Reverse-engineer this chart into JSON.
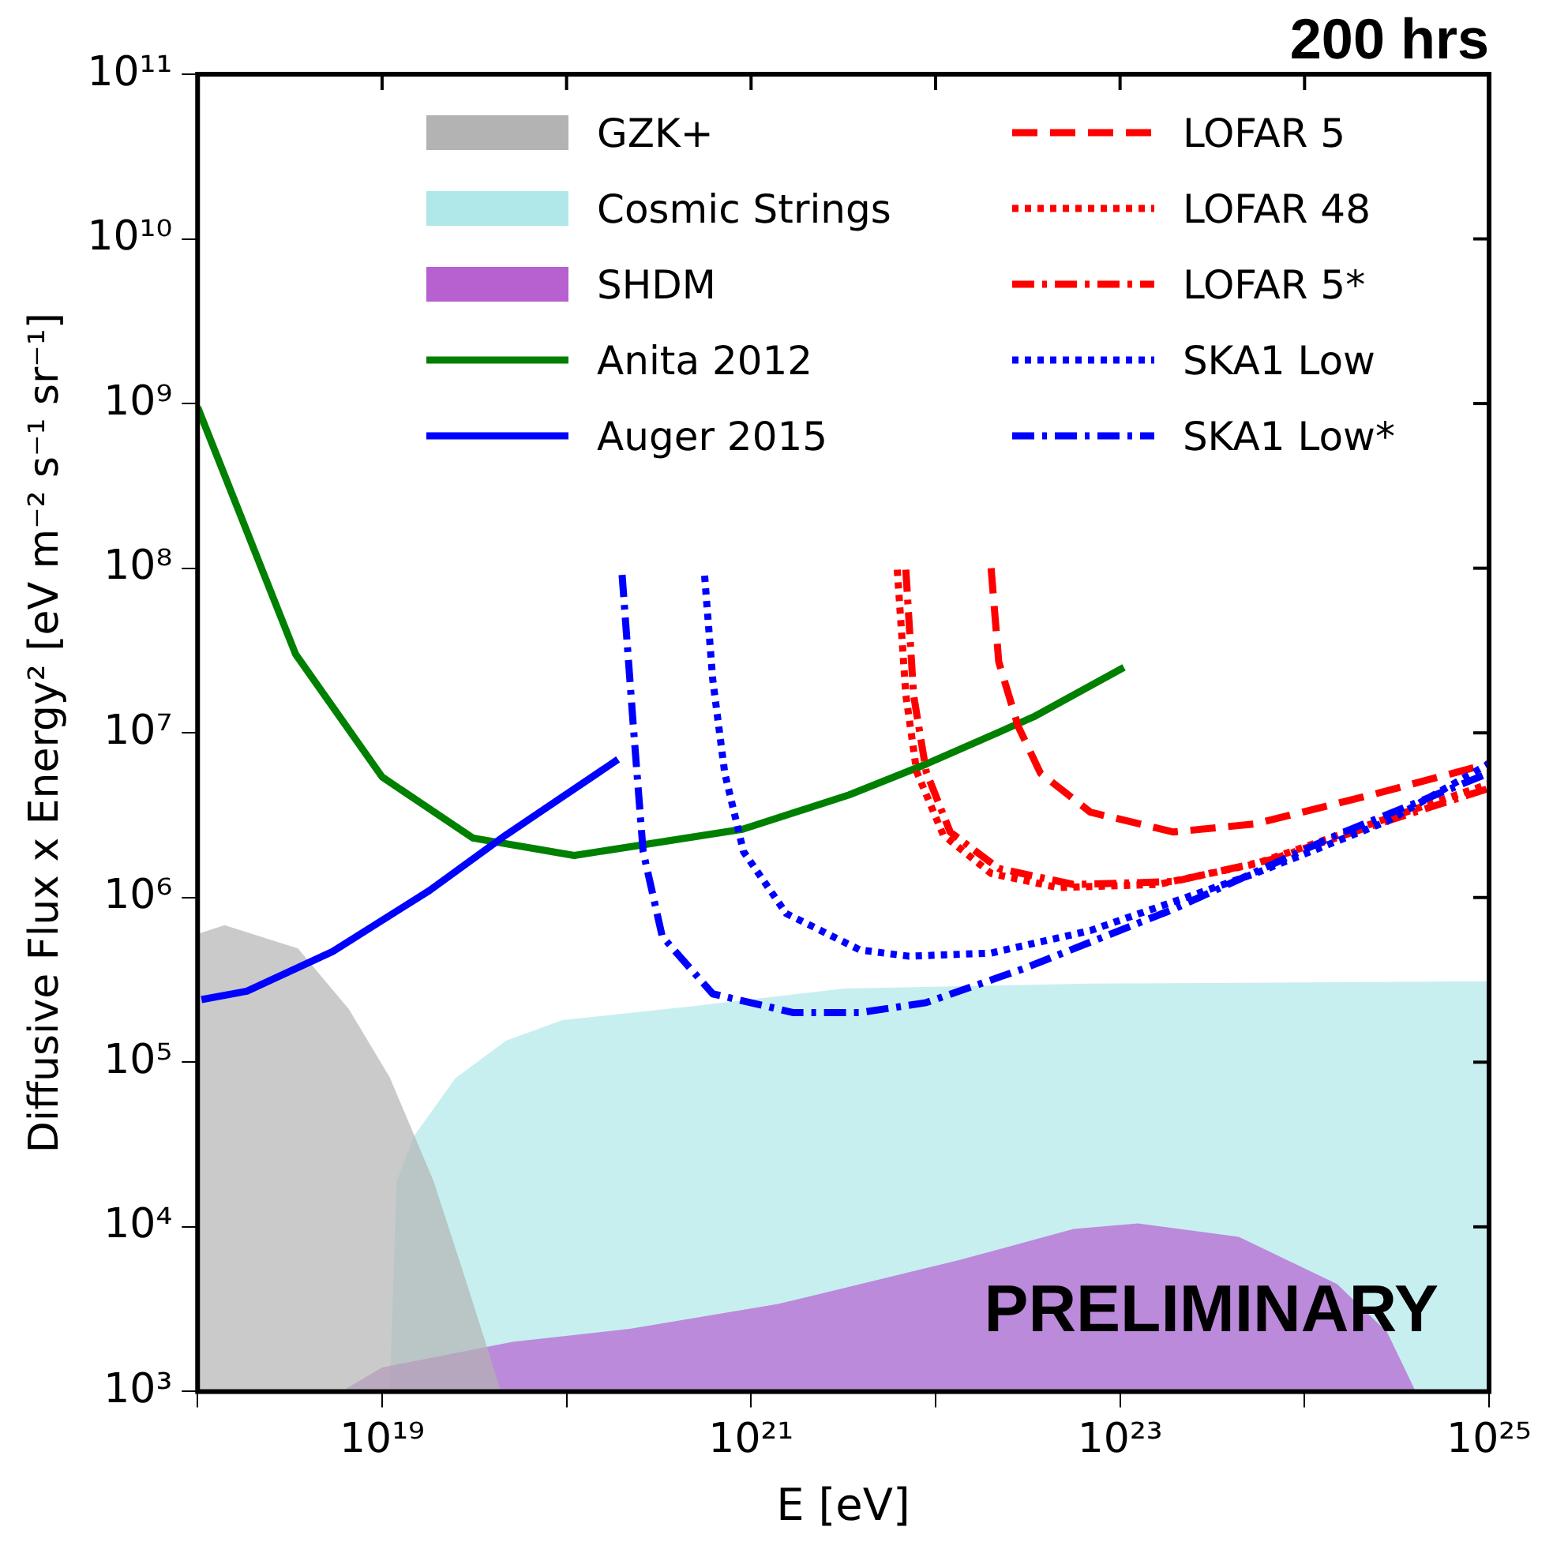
{
  "chart_data": {
    "type": "line",
    "title": "200 hrs",
    "xlabel": "E [eV]",
    "ylabel": "Diffusive Flux x Energy² [eV m⁻² s⁻¹ sr⁻¹]",
    "annotations": [
      "PRELIMINARY"
    ],
    "log": "xy",
    "grid": false,
    "legend": "top",
    "marker": "none",
    "xlim": [
      1e+18,
      1e+25
    ],
    "ylim": [
      1000.0,
      100000000000.0
    ],
    "xticks": [
      {
        "value": 1e+18,
        "label": null
      },
      {
        "value": 1e+19,
        "label": "10¹⁹"
      },
      {
        "value": 1e+20,
        "label": null
      },
      {
        "value": 1e+21,
        "label": "10²¹"
      },
      {
        "value": 1e+22,
        "label": null
      },
      {
        "value": 1e+23,
        "label": "10²³"
      },
      {
        "value": 1e+24,
        "label": null
      },
      {
        "value": 1e+25,
        "label": "10²⁵"
      }
    ],
    "yticks": [
      {
        "value": 1000.0,
        "label": "10³"
      },
      {
        "value": 10000.0,
        "label": "10⁴"
      },
      {
        "value": 100000.0,
        "label": "10⁵"
      },
      {
        "value": 1000000.0,
        "label": "10⁶"
      },
      {
        "value": 10000000.0,
        "label": "10⁷"
      },
      {
        "value": 100000000.0,
        "label": "10⁸"
      },
      {
        "value": 1000000000.0,
        "label": "10⁹"
      },
      {
        "value": 10000000000.0,
        "label": "10¹⁰"
      },
      {
        "value": 100000000000.0,
        "label": "10¹¹"
      }
    ],
    "series": [
      {
        "name": "GZK+",
        "type": "area",
        "color": "#b3b3b3",
        "x": [
          1e+18,
          1.4e+18,
          3.5e+18,
          6.6e+18,
          1.1e+19,
          1.9e+19,
          2.8e+19,
          3.8e+19,
          4.4e+19
        ],
        "values": [
          600000.0,
          680000.0,
          490000.0,
          210000.0,
          81000.0,
          19000.0,
          5000.0,
          1700.0,
          1000.0
        ]
      },
      {
        "name": "Cosmic Strings",
        "type": "area",
        "color": "#b0e8ea",
        "x": [
          1.1e+19,
          1.2e+19,
          1.5e+19,
          2.5e+19,
          4.7e+19,
          9.5e+19,
          5e+20,
          3.2e+21,
          6.9e+22,
          1e+25
        ],
        "values": [
          1000.0,
          19000.0,
          36000.0,
          80000.0,
          135000.0,
          180000.0,
          220000.0,
          280000.0,
          300000.0,
          310000.0
        ]
      },
      {
        "name": "SHDM",
        "type": "area",
        "color": "#b760d0",
        "x": [
          6e+18,
          1e+19,
          5.1e+19,
          2.2e+20,
          1.4e+21,
          1.35e+22,
          5.6e+22,
          1.25e+23,
          4.4e+23,
          1.5e+24,
          2.8e+24,
          4e+24
        ],
        "values": [
          1000.0,
          1400.0,
          2000.0,
          2400.0,
          3400.0,
          6300.0,
          9700.0,
          10500.0,
          8700.0,
          4500.0,
          2300.0,
          1000.0
        ]
      },
      {
        "name": "Anita 2012",
        "color": "#008000",
        "line_style": "solid",
        "x": [
          1e+18,
          3.4e+18,
          1e+19,
          3.1e+19,
          1.1e+20,
          9e+20,
          3.4e+21,
          9e+21,
          3.4e+22,
          1.05e+23
        ],
        "values": [
          950000000.0,
          30000000.0,
          5400000.0,
          2300000.0,
          1800000.0,
          2600000.0,
          4200000.0,
          6500000.0,
          12500000.0,
          25000000.0
        ]
      },
      {
        "name": "Auger 2015",
        "color": "#0000ff",
        "line_style": "solid",
        "x": [
          1.05e+18,
          1.85e+18,
          5.4e+18,
          1.8e+19,
          4.7e+19,
          1.9e+20
        ],
        "values": [
          240000.0,
          270000.0,
          470000.0,
          1100000.0,
          2400000.0,
          6900000.0
        ]
      },
      {
        "name": "LOFAR 5",
        "color": "#ff0000",
        "line_style": "dashed",
        "x": [
          2e+22,
          2.2e+22,
          2.8e+22,
          3.7e+22,
          6.9e+22,
          1.95e+23,
          5.4e+23,
          2.3e+24,
          1e+25
        ],
        "values": [
          100000000.0,
          27000000.0,
          11000000.0,
          5700000.0,
          3300000.0,
          2500000.0,
          2800000.0,
          4200000.0,
          6500000.0
        ]
      },
      {
        "name": "LOFAR 48",
        "color": "#ff0000",
        "line_style": "dotted",
        "x": [
          6.2e+21,
          6.9e+21,
          7.9e+21,
          1.1e+22,
          2e+22,
          4.6e+22,
          1.6e+23,
          5.4e+23,
          2.3e+24,
          1e+25
        ],
        "values": [
          98000000.0,
          17000000.0,
          5800000.0,
          2400000.0,
          1400000.0,
          1150000.0,
          1200000.0,
          1600000.0,
          2800000.0,
          4900000.0
        ]
      },
      {
        "name": "LOFAR 5*",
        "color": "#ff0000",
        "line_style": "dashdot",
        "x": [
          6.9e+21,
          7.6e+21,
          8.9e+21,
          1.2e+22,
          2.2e+22,
          5.6e+22,
          1.95e+23,
          6.6e+23,
          2.5e+24,
          1e+25
        ],
        "values": [
          98000000.0,
          17000000.0,
          5800000.0,
          2500000.0,
          1500000.0,
          1200000.0,
          1250000.0,
          1700000.0,
          2800000.0,
          4600000.0
        ]
      },
      {
        "name": "SKA1 Low",
        "color": "#0000ff",
        "line_style": "dotted",
        "x": [
          5.6e+20,
          6.2e+20,
          7.2e+20,
          9.1e+20,
          1.55e+21,
          3.9e+21,
          7.2e+21,
          2e+22,
          6.9e+22,
          5.4e+23,
          2.8e+24,
          1e+25
        ],
        "values": [
          90000000.0,
          21000000.0,
          5700000.0,
          1900000.0,
          800000.0,
          480000.0,
          440000.0,
          460000.0,
          630000.0,
          1400000.0,
          2900000.0,
          6500000.0
        ]
      },
      {
        "name": "SKA1 Low*",
        "color": "#0000ff",
        "line_style": "dashdot",
        "x": [
          2e+20,
          2.3e+20,
          2.6e+20,
          3.3e+20,
          6.2e+20,
          1.7e+21,
          3.9e+21,
          8.9e+21,
          3e+22,
          1.95e+23,
          1.5e+24,
          1e+25
        ],
        "values": [
          91000000.0,
          11000000.0,
          1900000.0,
          580000.0,
          260000.0,
          200000.0,
          200000.0,
          230000.0,
          370000.0,
          850000.0,
          2400000.0,
          5700000.0
        ]
      }
    ]
  }
}
